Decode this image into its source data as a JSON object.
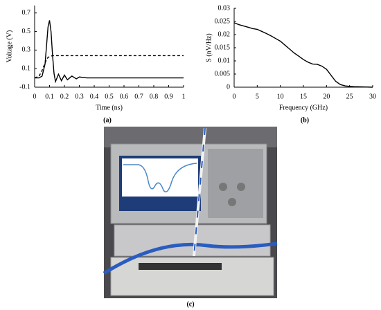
{
  "chart_data": [
    {
      "type": "line",
      "xlabel": "Time (ns)",
      "ylabel": "Voltage (V)",
      "x": [
        0,
        0.03,
        0.05,
        0.07,
        0.08,
        0.09,
        0.1,
        0.11,
        0.12,
        0.13,
        0.14,
        0.16,
        0.18,
        0.2,
        0.22,
        0.25,
        0.28,
        0.3,
        0.35,
        0.4,
        0.5,
        0.6,
        0.8,
        1
      ],
      "series": [
        {
          "color": "#000000",
          "dashed": false,
          "values": [
            0,
            0,
            0.02,
            0.15,
            0.35,
            0.55,
            0.62,
            0.5,
            0.25,
            0.05,
            -0.04,
            0.04,
            -0.03,
            0.03,
            -0.02,
            0.02,
            -0.01,
            0.01,
            0,
            0,
            0,
            0,
            0,
            0
          ]
        },
        {
          "color": "#000000",
          "dashed": true,
          "values": [
            0,
            0.02,
            0.08,
            0.16,
            0.2,
            0.22,
            0.23,
            0.235,
            0.24,
            0.24,
            0.24,
            0.24,
            0.24,
            0.24,
            0.24,
            0.24,
            0.24,
            0.24,
            0.24,
            0.24,
            0.24,
            0.24,
            0.24,
            0.24
          ]
        }
      ],
      "xlim": [
        0,
        1
      ],
      "xticks": [
        0,
        0.1,
        0.2,
        0.3,
        0.4,
        0.5,
        0.6,
        0.7,
        0.8,
        0.9,
        1
      ],
      "ylim": [
        -0.1,
        0.78
      ],
      "yticks": [
        -0.1,
        0.1,
        0.3,
        0.5,
        0.7
      ]
    },
    {
      "type": "line",
      "xlabel": "Frequency (GHz)",
      "ylabel": "S (nV/Hz)",
      "x": [
        0,
        1,
        2,
        3,
        4,
        5,
        6,
        7,
        8,
        9,
        10,
        11,
        12,
        13,
        14,
        15,
        16,
        17,
        18,
        19,
        20,
        21,
        22,
        23,
        24,
        25,
        26,
        28,
        30
      ],
      "series": [
        {
          "color": "#000000",
          "dashed": false,
          "values": [
            0.0245,
            0.0238,
            0.0233,
            0.0228,
            0.0223,
            0.022,
            0.0212,
            0.0204,
            0.0195,
            0.0185,
            0.0175,
            0.016,
            0.0145,
            0.013,
            0.0118,
            0.0105,
            0.0095,
            0.0088,
            0.0087,
            0.008,
            0.0068,
            0.0045,
            0.0022,
            0.001,
            0.0005,
            0.0003,
            0.0002,
            0.0001,
            0
          ]
        }
      ],
      "xlim": [
        0,
        30
      ],
      "xticks": [
        0,
        5,
        10,
        15,
        20,
        25,
        30
      ],
      "ylim": [
        0,
        0.03
      ],
      "yticks": [
        0,
        0.005,
        0.01,
        0.015,
        0.02,
        0.025,
        0.03
      ]
    }
  ],
  "captions": [
    "(a)",
    "(b)",
    "(c)"
  ]
}
